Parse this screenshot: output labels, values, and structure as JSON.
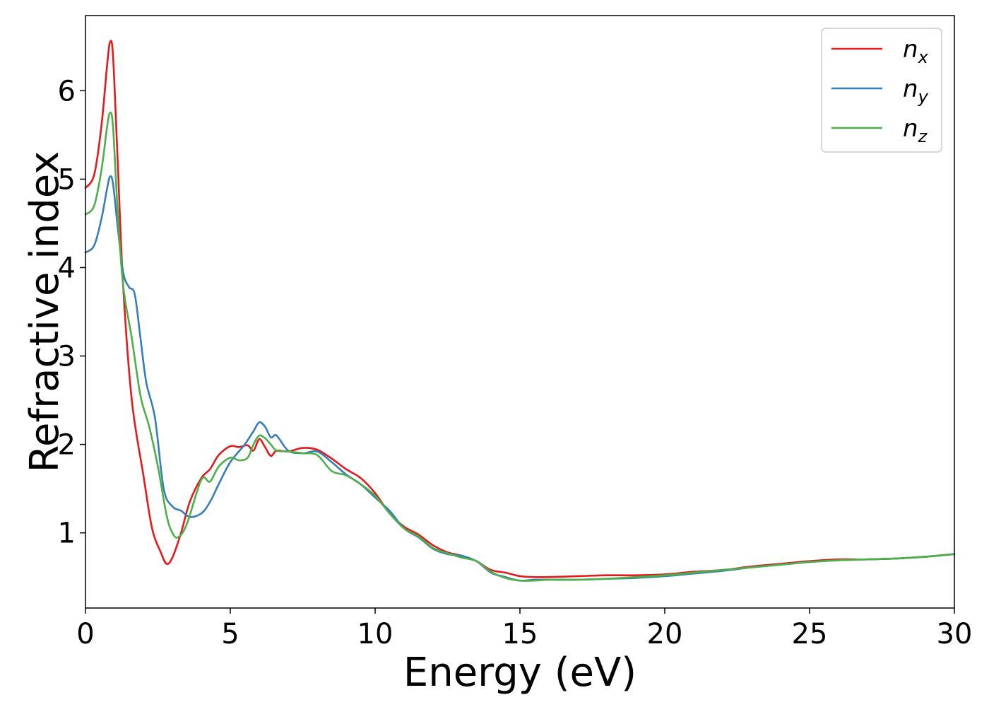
{
  "chart_data": {
    "type": "line",
    "title": "",
    "xlabel": "Energy (eV)",
    "ylabel": "Refractive index",
    "xlim": [
      0,
      30
    ],
    "ylim": [
      0.15,
      6.85
    ],
    "grid": false,
    "legend_position": "top-right",
    "xticks": [
      0,
      5,
      10,
      15,
      20,
      25,
      30
    ],
    "yticks": [
      1,
      2,
      3,
      4,
      5,
      6
    ],
    "xtick_labels": [
      "0",
      "5",
      "10",
      "15",
      "20",
      "25",
      "30"
    ],
    "ytick_labels": [
      "1",
      "2",
      "3",
      "4",
      "5",
      "6"
    ],
    "series": [
      {
        "name": "n_x",
        "label_base": "n",
        "label_sub": "x",
        "color": "#e41a1c",
        "x": [
          0,
          0.3,
          0.55,
          0.75,
          0.85,
          0.95,
          1.1,
          1.3,
          1.6,
          2.0,
          2.3,
          2.6,
          2.8,
          3.0,
          3.3,
          3.6,
          4.0,
          4.3,
          4.6,
          5.0,
          5.3,
          5.6,
          5.8,
          6.0,
          6.2,
          6.4,
          6.6,
          7.0,
          7.5,
          8.0,
          8.5,
          9.0,
          9.5,
          10.0,
          10.5,
          11.0,
          11.5,
          12.0,
          12.5,
          13.0,
          13.5,
          14.0,
          14.5,
          15.0,
          15.5,
          16.0,
          17.0,
          18.0,
          19.0,
          20.0,
          21.0,
          22.0,
          23.0,
          24.0,
          25.0,
          26.0,
          27.0,
          28.0,
          29.0,
          30.0
        ],
        "y": [
          4.9,
          5.05,
          5.6,
          6.3,
          6.55,
          6.4,
          5.3,
          3.8,
          2.5,
          1.65,
          1.05,
          0.78,
          0.65,
          0.72,
          1.0,
          1.35,
          1.62,
          1.72,
          1.88,
          1.98,
          1.97,
          1.99,
          1.93,
          2.06,
          1.97,
          1.87,
          1.93,
          1.92,
          1.96,
          1.94,
          1.84,
          1.72,
          1.62,
          1.45,
          1.22,
          1.07,
          0.98,
          0.86,
          0.78,
          0.74,
          0.68,
          0.58,
          0.55,
          0.51,
          0.5,
          0.5,
          0.51,
          0.52,
          0.52,
          0.53,
          0.56,
          0.58,
          0.62,
          0.65,
          0.68,
          0.7,
          0.7,
          0.71,
          0.73,
          0.76
        ]
      },
      {
        "name": "n_y",
        "label_base": "n",
        "label_sub": "y",
        "color": "#377eb8",
        "x": [
          0,
          0.3,
          0.55,
          0.75,
          0.85,
          0.95,
          1.1,
          1.3,
          1.5,
          1.7,
          1.9,
          2.1,
          2.4,
          2.7,
          3.0,
          3.3,
          3.6,
          4.0,
          4.3,
          4.6,
          5.0,
          5.5,
          5.8,
          6.0,
          6.2,
          6.4,
          6.6,
          7.0,
          7.5,
          8.0,
          8.5,
          9.0,
          9.5,
          10.0,
          10.5,
          11.0,
          11.5,
          12.0,
          12.5,
          13.0,
          13.5,
          14.0,
          14.5,
          15.0,
          15.5,
          16.0,
          17.0,
          18.0,
          19.0,
          20.0,
          21.0,
          22.0,
          23.0,
          24.0,
          25.0,
          26.0,
          27.0,
          28.0,
          29.0,
          30.0
        ],
        "y": [
          4.17,
          4.25,
          4.55,
          4.9,
          5.03,
          4.95,
          4.5,
          3.95,
          3.78,
          3.7,
          3.2,
          2.7,
          2.3,
          1.5,
          1.3,
          1.25,
          1.18,
          1.22,
          1.35,
          1.55,
          1.8,
          2.0,
          2.15,
          2.25,
          2.2,
          2.08,
          2.1,
          1.93,
          1.9,
          1.92,
          1.8,
          1.66,
          1.55,
          1.4,
          1.25,
          1.05,
          0.95,
          0.82,
          0.76,
          0.74,
          0.68,
          0.55,
          0.5,
          0.46,
          0.47,
          0.47,
          0.47,
          0.48,
          0.49,
          0.51,
          0.54,
          0.57,
          0.61,
          0.64,
          0.67,
          0.69,
          0.7,
          0.71,
          0.73,
          0.76
        ]
      },
      {
        "name": "n_z",
        "label_base": "n",
        "label_sub": "z",
        "color": "#4daf4a",
        "x": [
          0,
          0.3,
          0.55,
          0.75,
          0.85,
          0.95,
          1.1,
          1.3,
          1.6,
          1.9,
          2.2,
          2.5,
          2.8,
          3.0,
          3.2,
          3.5,
          4.0,
          4.3,
          4.6,
          5.0,
          5.3,
          5.6,
          5.8,
          6.0,
          6.2,
          6.4,
          6.6,
          7.0,
          7.5,
          8.0,
          8.5,
          9.0,
          9.5,
          10.0,
          10.5,
          11.0,
          11.5,
          12.0,
          12.5,
          13.0,
          13.5,
          14.0,
          14.5,
          15.0,
          15.5,
          16.0,
          17.0,
          18.0,
          19.0,
          20.0,
          21.0,
          22.0,
          23.0,
          24.0,
          25.0,
          26.0,
          27.0,
          28.0,
          29.0,
          30.0
        ],
        "y": [
          4.6,
          4.7,
          5.1,
          5.6,
          5.75,
          5.6,
          4.7,
          3.8,
          3.2,
          2.55,
          2.2,
          1.75,
          1.2,
          1.0,
          0.95,
          1.1,
          1.6,
          1.58,
          1.75,
          1.85,
          1.82,
          1.85,
          2.0,
          2.1,
          2.07,
          2.0,
          1.93,
          1.92,
          1.9,
          1.88,
          1.7,
          1.65,
          1.55,
          1.42,
          1.22,
          1.05,
          0.96,
          0.83,
          0.77,
          0.72,
          0.68,
          0.56,
          0.49,
          0.46,
          0.46,
          0.47,
          0.47,
          0.48,
          0.5,
          0.52,
          0.55,
          0.58,
          0.61,
          0.64,
          0.67,
          0.69,
          0.7,
          0.71,
          0.73,
          0.76
        ]
      }
    ]
  }
}
